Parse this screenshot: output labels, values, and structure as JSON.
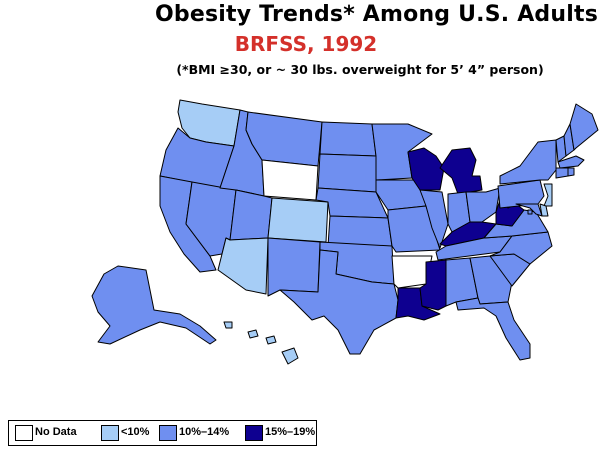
{
  "title": "Obesity Trends*  Among U.S. Adults",
  "subtitle": "BRFSS, 1992",
  "note": "(*BMI ≥30, or ~ 30 lbs. overweight for 5’ 4” person)",
  "colors": {
    "title_red": "#d4302a",
    "no_data": "#ffffff",
    "lt10": "#a6cdf6",
    "p10_14": "#6f8ff0",
    "p15_19": "#0e0090",
    "border": "#000000"
  },
  "legend": [
    {
      "label": "No Data",
      "class": "no_data"
    },
    {
      "label": "<10%",
      "class": "lt10"
    },
    {
      "label": "10%–14%",
      "class": "p10_14"
    },
    {
      "label": "15%–19%",
      "class": "p15_19"
    }
  ],
  "states": {
    "WA": "lt10",
    "OR": "p10_14",
    "CA": "p10_14",
    "NV": "p10_14",
    "ID": "p10_14",
    "MT": "p10_14",
    "WY": "no_data",
    "UT": "p10_14",
    "AZ": "lt10",
    "CO": "lt10",
    "NM": "p10_14",
    "ND": "p10_14",
    "SD": "p10_14",
    "NE": "p10_14",
    "KS": "p10_14",
    "OK": "p10_14",
    "TX": "p10_14",
    "MN": "p10_14",
    "IA": "p10_14",
    "MO": "p10_14",
    "AR": "no_data",
    "LA": "p15_19",
    "WI": "p15_19",
    "IL": "p10_14",
    "MI": "p15_19",
    "IN": "p10_14",
    "OH": "p10_14",
    "KY": "p15_19",
    "TN": "p10_14",
    "MS": "p15_19",
    "AL": "p10_14",
    "GA": "p10_14",
    "FL": "p10_14",
    "SC": "p10_14",
    "NC": "p10_14",
    "VA": "p10_14",
    "WV": "p15_19",
    "PA": "p10_14",
    "NY": "p10_14",
    "VT": "p10_14",
    "NH": "p10_14",
    "ME": "p10_14",
    "MA": "p10_14",
    "CT": "p10_14",
    "RI": "p10_14",
    "NJ": "lt10",
    "DE": "lt10",
    "MD": "p10_14",
    "DC": "p10_14",
    "AK": "p10_14",
    "HI": "lt10"
  }
}
